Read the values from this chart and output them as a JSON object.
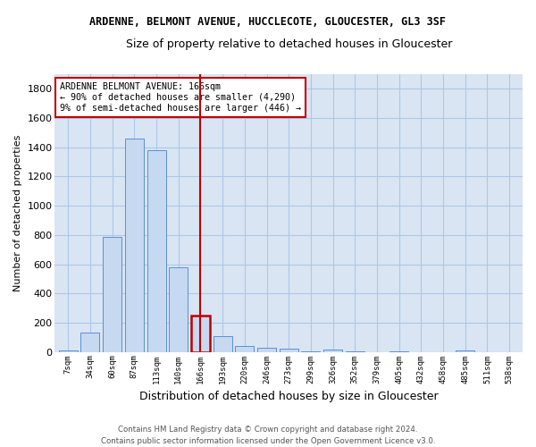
{
  "title1": "ARDENNE, BELMONT AVENUE, HUCCLECOTE, GLOUCESTER, GL3 3SF",
  "title2": "Size of property relative to detached houses in Gloucester",
  "xlabel": "Distribution of detached houses by size in Gloucester",
  "ylabel": "Number of detached properties",
  "footer1": "Contains HM Land Registry data © Crown copyright and database right 2024.",
  "footer2": "Contains public sector information licensed under the Open Government Licence v3.0.",
  "annotation_line1": "ARDENNE BELMONT AVENUE: 166sqm",
  "annotation_line2": "← 90% of detached houses are smaller (4,290)",
  "annotation_line3": "9% of semi-detached houses are larger (446) →",
  "bar_labels": [
    "7sqm",
    "34sqm",
    "60sqm",
    "87sqm",
    "113sqm",
    "140sqm",
    "166sqm",
    "193sqm",
    "220sqm",
    "246sqm",
    "273sqm",
    "299sqm",
    "326sqm",
    "352sqm",
    "379sqm",
    "405sqm",
    "432sqm",
    "458sqm",
    "485sqm",
    "511sqm",
    "538sqm"
  ],
  "bar_values": [
    10,
    130,
    790,
    1460,
    1380,
    580,
    250,
    110,
    40,
    30,
    20,
    5,
    15,
    5,
    0,
    5,
    0,
    0,
    10,
    0,
    0
  ],
  "bar_color": "#c6d9f0",
  "bar_edge_color": "#5b8fd4",
  "highlight_color": "#c00000",
  "ylim": [
    0,
    1900
  ],
  "yticks": [
    0,
    200,
    400,
    600,
    800,
    1000,
    1200,
    1400,
    1600,
    1800
  ],
  "grid_color": "#aec6e8",
  "bg_color": "#d9e5f3",
  "highlight_index": 6
}
